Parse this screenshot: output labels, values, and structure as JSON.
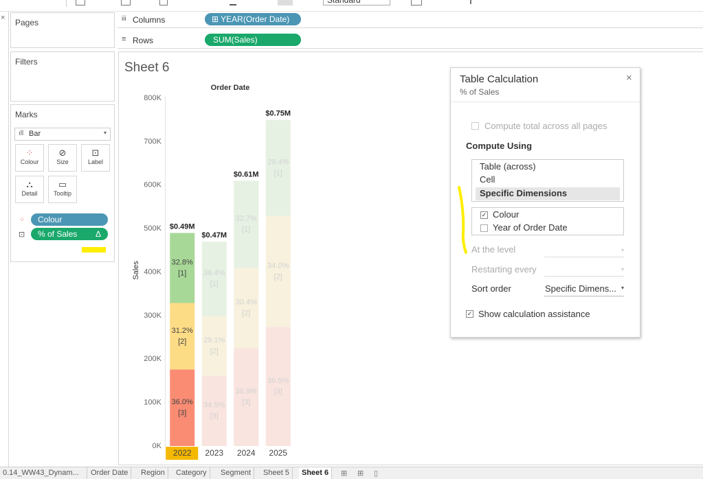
{
  "toolbar": {
    "dropdown": "Standard"
  },
  "cards": {
    "pages": "Pages",
    "filters": "Filters",
    "marks": {
      "title": "Marks",
      "mark_type": "Bar",
      "buttons": [
        "Colour",
        "Size",
        "Label",
        "Detail",
        "Tooltip"
      ],
      "pills": [
        "Colour",
        "% of Sales"
      ]
    }
  },
  "shelves": {
    "columns": {
      "label": "Columns",
      "pill": "YEAR(Order Date)"
    },
    "rows": {
      "label": "Rows",
      "pill": "SUM(Sales)"
    }
  },
  "sheet": {
    "title": "Sheet 6"
  },
  "chart_data": {
    "type": "bar",
    "stacked": true,
    "title": "Order Date",
    "y_label": "Sales",
    "categories": [
      "2022",
      "2023",
      "2024",
      "2025"
    ],
    "selected_category": 0,
    "series": [
      {
        "color": "#fa8c74",
        "faded_color": "#f9e4df",
        "values": [
          176000,
          162000,
          225000,
          274000
        ],
        "percent_labels": [
          "36.0%",
          "34.5%",
          "36.9%",
          "36.5%"
        ],
        "index_labels": [
          "[3]",
          "[3]",
          "[3]",
          "[3]"
        ]
      },
      {
        "color": "#fddc86",
        "faded_color": "#f7f1dd",
        "values": [
          153000,
          137000,
          185000,
          255000
        ],
        "percent_labels": [
          "31.2%",
          "29.1%",
          "30.4%",
          "34.0%"
        ],
        "index_labels": [
          "[2]",
          "[2]",
          "[2]",
          "[2]"
        ]
      },
      {
        "color": "#a8d897",
        "faded_color": "#e6f1e3",
        "values": [
          161000,
          171000,
          200000,
          221000
        ],
        "percent_labels": [
          "32.8%",
          "36.4%",
          "32.7%",
          "29.4%"
        ],
        "index_labels": [
          "[1]",
          "[1]",
          "[1]",
          "[1]"
        ]
      }
    ],
    "total_labels": [
      "$0.49M",
      "$0.47M",
      "$0.61M",
      "$0.75M"
    ],
    "ylim": [
      0,
      800000
    ],
    "yticks": [
      {
        "value": 0,
        "label": "0K"
      },
      {
        "value": 100000,
        "label": "100K"
      },
      {
        "value": 200000,
        "label": "200K"
      },
      {
        "value": 300000,
        "label": "300K"
      },
      {
        "value": 400000,
        "label": "400K"
      },
      {
        "value": 500000,
        "label": "500K"
      },
      {
        "value": 600000,
        "label": "600K"
      },
      {
        "value": 700000,
        "label": "700K"
      },
      {
        "value": 800000,
        "label": "800K"
      }
    ],
    "grid": false
  },
  "dialog": {
    "title": "Table Calculation",
    "subtitle": "% of Sales",
    "compute_total": "Compute total across all pages",
    "compute_using": "Compute Using",
    "options": [
      "Table (across)",
      "Cell",
      "Specific Dimensions"
    ],
    "dimensions": [
      "Colour",
      "Year of Order Date"
    ],
    "at_level": "At the level",
    "restarting": "Restarting every",
    "sort_order": "Sort order",
    "sort_value": "Specific Dimens...",
    "show_assist": "Show calculation assistance"
  },
  "tabs": [
    "0.14_WW43_Dynam...",
    "Order Date",
    "Region",
    "Category",
    "Segment",
    "Sheet 5",
    "Sheet 6"
  ]
}
